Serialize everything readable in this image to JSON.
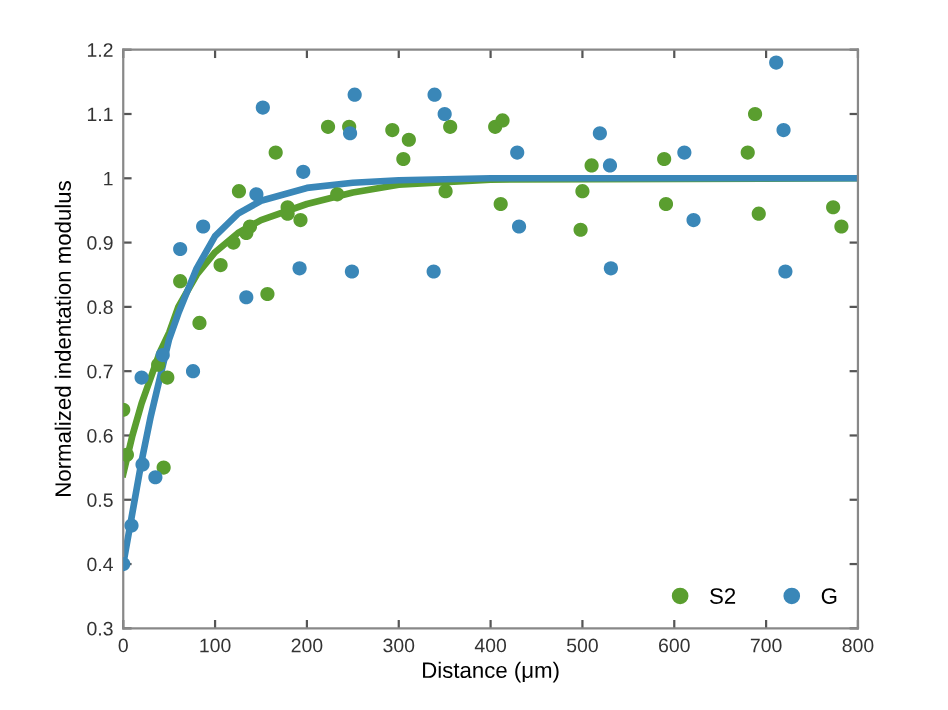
{
  "chart_data": {
    "type": "scatter",
    "xlabel": "Distance (μm)",
    "ylabel": "Normalized indentation modulus",
    "xlim": [
      0,
      800
    ],
    "xticks": [
      0,
      100,
      200,
      300,
      400,
      500,
      600,
      700,
      800
    ],
    "ylim": [
      0.3,
      1.2
    ],
    "yticks": [
      0.3,
      0.4,
      0.5,
      0.6,
      0.7,
      0.8,
      0.9,
      {
        "value": 1.0,
        "label": "1"
      },
      1.1,
      1.2
    ],
    "grid": false,
    "legend": "bottom right",
    "series": [
      {
        "name": "S2",
        "marker": "circle",
        "color": "#5a9e2f",
        "x": [
          0,
          4,
          38,
          44,
          48,
          62,
          83,
          106,
          120,
          126,
          134,
          138,
          157,
          166,
          179,
          179,
          193,
          223,
          233,
          246,
          293,
          305,
          311,
          351,
          356,
          405,
          413,
          411,
          500,
          498,
          510,
          589,
          591,
          680,
          688,
          692,
          773,
          782
        ],
        "values": [
          0.64,
          0.57,
          0.71,
          0.55,
          0.69,
          0.84,
          0.775,
          0.865,
          0.9,
          0.98,
          0.915,
          0.925,
          0.82,
          1.04,
          0.955,
          0.945,
          0.935,
          1.08,
          0.975,
          1.08,
          1.075,
          1.03,
          1.06,
          0.98,
          1.08,
          1.08,
          1.09,
          0.96,
          0.98,
          0.92,
          1.02,
          1.03,
          0.96,
          1.04,
          1.1,
          0.945,
          0.955,
          0.925
        ]
      },
      {
        "name": "G",
        "marker": "circle",
        "color": "#3a87b8",
        "x": [
          0,
          9,
          20,
          21,
          35,
          43,
          62,
          76,
          87,
          134,
          145,
          152,
          192,
          196,
          247,
          249,
          252,
          338,
          339,
          350,
          429,
          431,
          519,
          530,
          531,
          611,
          621,
          711,
          719,
          721
        ],
        "values": [
          0.4,
          0.46,
          0.69,
          0.555,
          0.535,
          0.725,
          0.89,
          0.7,
          0.925,
          0.815,
          0.975,
          1.11,
          0.86,
          1.01,
          1.07,
          0.855,
          1.13,
          0.855,
          1.13,
          1.1,
          1.04,
          0.925,
          1.07,
          1.02,
          0.86,
          1.04,
          0.935,
          1.18,
          1.075,
          0.855
        ]
      },
      {
        "type": "line",
        "marker": "none",
        "color": "#5a9e2f",
        "x": [
          0,
          10,
          20,
          30,
          40,
          50,
          60,
          80,
          100,
          125,
          150,
          200,
          250,
          300,
          400,
          800
        ],
        "values": [
          0.54,
          0.6,
          0.65,
          0.69,
          0.73,
          0.76,
          0.8,
          0.85,
          0.885,
          0.915,
          0.935,
          0.96,
          0.978,
          0.99,
          0.998,
          1.0
        ]
      },
      {
        "type": "line",
        "marker": "none",
        "color": "#3a87b8",
        "x": [
          0,
          10,
          20,
          30,
          40,
          50,
          60,
          80,
          100,
          125,
          150,
          200,
          250,
          300,
          400,
          800
        ],
        "values": [
          0.4,
          0.48,
          0.56,
          0.63,
          0.69,
          0.75,
          0.79,
          0.86,
          0.91,
          0.945,
          0.965,
          0.985,
          0.993,
          0.997,
          1.0,
          1.0
        ]
      }
    ]
  }
}
